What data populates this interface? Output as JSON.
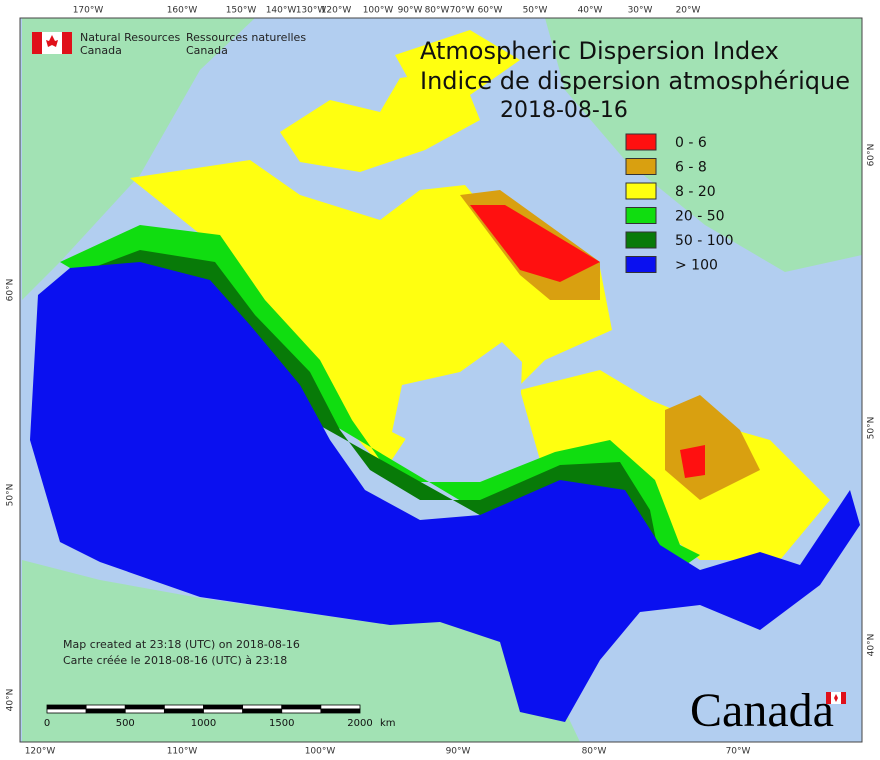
{
  "header": {
    "agency_en": "Natural Resources",
    "country_en": "Canada",
    "agency_fr": "Ressources naturelles",
    "country_fr": "Canada"
  },
  "title": {
    "line1": "Atmospheric Dispersion Index",
    "line2": "Indice de dispersion atmosphérique",
    "date": "2018-08-16"
  },
  "legend": [
    {
      "label": "0 - 6",
      "color": "#ff1010"
    },
    {
      "label": "6 - 8",
      "color": "#d9a010"
    },
    {
      "label": "8 - 20",
      "color": "#ffff10"
    },
    {
      "label": "20 - 50",
      "color": "#10dd10"
    },
    {
      "label": "50 - 100",
      "color": "#087a08"
    },
    {
      "label": "> 100",
      "color": "#0a10f0"
    }
  ],
  "graticule": {
    "top": [
      "170°W",
      "160°W",
      "150°W",
      "140°W",
      "130°W",
      "120°W",
      "100°W",
      "90°W",
      "80°W",
      "70°W",
      "60°W",
      "50°W",
      "40°W",
      "30°W",
      "20°W"
    ],
    "bottom": [
      "120°W",
      "110°W",
      "100°W",
      "90°W",
      "80°W",
      "70°W"
    ],
    "left": [
      "60°N",
      "50°N",
      "40°N"
    ],
    "right": [
      "60°N",
      "50°N",
      "40°N"
    ]
  },
  "credits": {
    "en": "Map created at 23:18 (UTC) on 2018-08-16",
    "fr": "Carte créée le 2018-08-16 (UTC) à 23:18"
  },
  "scale_bar": {
    "ticks": [
      0,
      500,
      1000,
      1500,
      2000
    ],
    "unit": "km"
  },
  "wordmark": "Canada"
}
